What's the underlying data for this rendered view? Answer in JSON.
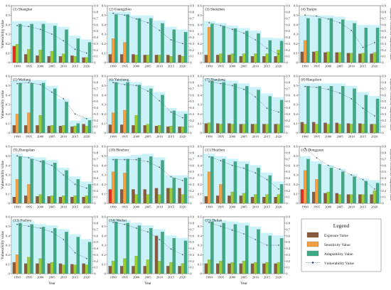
{
  "labels": {
    "ylabel_left": "Vulnerability value",
    "ylabel_right": "Exposure Sensitivity Adaptability value",
    "xlabel": "Year",
    "legend_title": "Legend",
    "legend_items": [
      "Exposure Value",
      "Sensitivity Value",
      "Adaptability Value",
      "Vulnerability Value"
    ]
  },
  "colors": {
    "exposure": "#8B5A3C",
    "sensitivity": "#9ACD32",
    "adaptability": "#3DAA85",
    "vulnerability": "#4A5A78",
    "band": "#B8EEF5",
    "highlight_exposure": "#E03020",
    "highlight_sensitivity": "#F5A040"
  },
  "chart_data": [
    {
      "title": "(1) Shanghai",
      "type": "bar",
      "categories": [
        "1990",
        "1995",
        "2000",
        "2005",
        "2010",
        "2015",
        "2020"
      ],
      "ylim": [
        0,
        0.6
      ],
      "y2lim": [
        0,
        0.9
      ],
      "series": [
        {
          "name": "Exposure Value",
          "values": [
            0.26,
            0.13,
            0.11,
            0.1,
            0.1,
            0.11,
            0.08
          ]
        },
        {
          "name": "Sensitivity Value",
          "values": [
            0.29,
            0.21,
            0.2,
            0.18,
            0.14,
            0.1,
            0.08
          ]
        },
        {
          "name": "Adaptability Value",
          "values": [
            0.61,
            0.61,
            0.61,
            0.58,
            0.52,
            0.38,
            0.32
          ]
        },
        {
          "name": "Vulnerability Value",
          "values": [
            0.39,
            0.38,
            0.35,
            0.3,
            0.23,
            0.14,
            0.1
          ]
        }
      ]
    },
    {
      "title": "(2) Guangzhou",
      "type": "bar",
      "categories": [
        "1990",
        "1995",
        "2000",
        "2005",
        "2010",
        "2015",
        "2020"
      ],
      "ylim": [
        0,
        0.6
      ],
      "y2lim": [
        0,
        0.9
      ],
      "series": [
        {
          "name": "Exposure Value",
          "values": [
            0.13,
            0.13,
            0.13,
            0.12,
            0.12,
            0.12,
            0.12
          ]
        },
        {
          "name": "Sensitivity Value",
          "values": [
            0.38,
            0.32,
            0.12,
            0.12,
            0.12,
            0.1,
            0.1
          ]
        },
        {
          "name": "Adaptability Value",
          "values": [
            0.76,
            0.76,
            0.7,
            0.7,
            0.62,
            0.52,
            0.48
          ]
        },
        {
          "name": "Vulnerability Value",
          "values": [
            0.52,
            0.5,
            0.46,
            0.42,
            0.34,
            0.24,
            0.2
          ]
        }
      ]
    },
    {
      "title": "(3) Shenzhen",
      "type": "bar",
      "categories": [
        "1990",
        "1995",
        "2000",
        "2005",
        "2010",
        "2015",
        "2020"
      ],
      "ylim": [
        0,
        0.6
      ],
      "y2lim": [
        0,
        0.9
      ],
      "series": [
        {
          "name": "Exposure Value",
          "values": [
            0.12,
            0.12,
            0.12,
            0.1,
            0.1,
            0.1,
            0.1
          ]
        },
        {
          "name": "Sensitivity Value",
          "values": [
            0.56,
            0.14,
            0.14,
            0.14,
            0.14,
            0.14,
            0.2
          ]
        },
        {
          "name": "Adaptability Value",
          "values": [
            0.61,
            0.58,
            0.54,
            0.5,
            0.46,
            0.35,
            0.34
          ]
        },
        {
          "name": "Vulnerability Value",
          "values": [
            0.42,
            0.39,
            0.35,
            0.31,
            0.24,
            0.15,
            0.09
          ]
        }
      ]
    },
    {
      "title": "(4) Tianjin",
      "type": "bar",
      "categories": [
        "1990",
        "1995",
        "2000",
        "2005",
        "2010",
        "2015",
        "2020"
      ],
      "ylim": [
        0,
        0.6
      ],
      "y2lim": [
        0,
        0.9
      ],
      "series": [
        {
          "name": "Exposure Value",
          "values": [
            0.17,
            0.17,
            0.16,
            0.16,
            0.15,
            0.14,
            0.14
          ]
        },
        {
          "name": "Sensitivity Value",
          "values": [
            0.35,
            0.18,
            0.17,
            0.16,
            0.15,
            0.15,
            0.16
          ]
        },
        {
          "name": "Adaptability Value",
          "values": [
            0.7,
            0.7,
            0.7,
            0.68,
            0.62,
            0.55,
            0.55
          ]
        },
        {
          "name": "Vulnerability Value",
          "values": [
            0.5,
            0.49,
            0.46,
            0.42,
            0.34,
            0.16,
            0.21
          ]
        }
      ]
    },
    {
      "title": "(5) Weifang",
      "type": "bar",
      "categories": [
        "1990",
        "1995",
        "2000",
        "2005",
        "2010",
        "2015",
        "2020"
      ],
      "ylim": [
        0,
        0.6
      ],
      "y2lim": [
        0,
        0.9
      ],
      "series": [
        {
          "name": "Exposure Value",
          "values": [
            0.12,
            0.12,
            0.12,
            0.11,
            0.11,
            0.1,
            0.14
          ]
        },
        {
          "name": "Sensitivity Value",
          "values": [
            0.3,
            0.32,
            0.28,
            0.12,
            0.12,
            0.11,
            0.11
          ]
        },
        {
          "name": "Adaptability Value",
          "values": [
            0.79,
            0.79,
            0.79,
            0.7,
            0.49,
            0.15,
            0.2
          ]
        },
        {
          "name": "Vulnerability Value",
          "values": [
            0.52,
            0.53,
            0.51,
            0.43,
            0.36,
            0.2,
            0.15
          ]
        }
      ]
    },
    {
      "title": "(6) Yancheng",
      "type": "bar",
      "categories": [
        "1990",
        "1995",
        "2000",
        "2005",
        "2010",
        "2015",
        "2020"
      ],
      "ylim": [
        0,
        0.6
      ],
      "y2lim": [
        0,
        0.9
      ],
      "series": [
        {
          "name": "Exposure Value",
          "values": [
            0.13,
            0.13,
            0.12,
            0.12,
            0.11,
            0.1,
            0.1
          ]
        },
        {
          "name": "Sensitivity Value",
          "values": [
            0.32,
            0.36,
            0.28,
            0.14,
            0.12,
            0.11,
            0.1
          ]
        },
        {
          "name": "Adaptability Value",
          "values": [
            0.8,
            0.8,
            0.76,
            0.7,
            0.6,
            0.35,
            0.3
          ]
        },
        {
          "name": "Vulnerability Value",
          "values": [
            0.53,
            0.51,
            0.5,
            0.44,
            0.34,
            0.22,
            0.16
          ]
        }
      ]
    },
    {
      "title": "(7) Zhanjiang",
      "type": "bar",
      "categories": [
        "1990",
        "1995",
        "2000",
        "2005",
        "2010",
        "2015",
        "2020"
      ],
      "ylim": [
        0,
        0.6
      ],
      "y2lim": [
        0,
        0.9
      ],
      "series": [
        {
          "name": "Exposure Value",
          "values": [
            0.15,
            0.15,
            0.15,
            0.14,
            0.14,
            0.14,
            0.14
          ]
        },
        {
          "name": "Sensitivity Value",
          "values": [
            0.16,
            0.14,
            0.14,
            0.14,
            0.14,
            0.14,
            0.14
          ]
        },
        {
          "name": "Adaptability Value",
          "values": [
            0.82,
            0.8,
            0.78,
            0.74,
            0.68,
            0.58,
            0.52
          ]
        },
        {
          "name": "Vulnerability Value",
          "values": [
            0.54,
            0.52,
            0.5,
            0.46,
            0.38,
            0.26,
            0.22
          ]
        }
      ]
    },
    {
      "title": "(8) Hangzhou",
      "type": "bar",
      "categories": [
        "1990",
        "1995",
        "2000",
        "2005",
        "2010",
        "2015",
        "2020"
      ],
      "ylim": [
        0,
        0.6
      ],
      "y2lim": [
        0,
        0.9
      ],
      "series": [
        {
          "name": "Exposure Value",
          "values": [
            0.17,
            0.17,
            0.16,
            0.16,
            0.15,
            0.15,
            0.14
          ]
        },
        {
          "name": "Sensitivity Value",
          "values": [
            0.14,
            0.14,
            0.14,
            0.14,
            0.14,
            0.14,
            0.14
          ]
        },
        {
          "name": "Adaptability Value",
          "values": [
            0.74,
            0.74,
            0.74,
            0.74,
            0.7,
            0.6,
            0.54
          ]
        },
        {
          "name": "Vulnerability Value",
          "values": [
            0.49,
            0.48,
            0.46,
            0.42,
            0.36,
            0.26,
            0.18
          ]
        }
      ]
    },
    {
      "title": "(9) Zhongshan",
      "type": "bar",
      "categories": [
        "1990",
        "1995",
        "2000",
        "2005",
        "2010",
        "2015",
        "2020"
      ],
      "ylim": [
        0,
        0.6
      ],
      "y2lim": [
        0,
        0.9
      ],
      "series": [
        {
          "name": "Exposure Value",
          "values": [
            0.1,
            0.12,
            0.11,
            0.11,
            0.1,
            0.1,
            0.1
          ]
        },
        {
          "name": "Sensitivity Value",
          "values": [
            0.38,
            0.3,
            0.14,
            0.12,
            0.12,
            0.12,
            0.12
          ]
        },
        {
          "name": "Adaptability Value",
          "values": [
            0.74,
            0.7,
            0.68,
            0.64,
            0.52,
            0.38,
            0.3
          ]
        },
        {
          "name": "Vulnerability Value",
          "values": [
            0.5,
            0.48,
            0.44,
            0.4,
            0.3,
            0.2,
            0.16
          ]
        }
      ]
    },
    {
      "title": "(10) Binzhou",
      "type": "bar",
      "categories": [
        "1990",
        "1995",
        "2000",
        "2005",
        "2010",
        "2015",
        "2020"
      ],
      "ylim": [
        0,
        0.6
      ],
      "y2lim": [
        0,
        0.9
      ],
      "series": [
        {
          "name": "Exposure Value",
          "values": [
            0.22,
            0.22,
            0.22,
            0.22,
            0.24,
            0.24,
            0.24
          ]
        },
        {
          "name": "Sensitivity Value",
          "values": [
            0.5,
            0.48,
            0.14,
            0.14,
            0.14,
            0.24,
            0.14
          ]
        },
        {
          "name": "Adaptability Value",
          "values": [
            0.7,
            0.7,
            0.72,
            0.74,
            0.68,
            0.4,
            0.4
          ]
        },
        {
          "name": "Vulnerability Value",
          "values": [
            0.46,
            0.46,
            0.46,
            0.44,
            0.38,
            0.28,
            0.24
          ]
        }
      ]
    },
    {
      "title": "(11) Huizhou",
      "type": "bar",
      "categories": [
        "1990",
        "1995",
        "2000",
        "2005",
        "2010",
        "2015",
        "2020"
      ],
      "ylim": [
        0,
        0.6
      ],
      "y2lim": [
        0,
        0.9
      ],
      "series": [
        {
          "name": "Exposure Value",
          "values": [
            0.11,
            0.12,
            0.12,
            0.12,
            0.1,
            0.1,
            0.1
          ]
        },
        {
          "name": "Sensitivity Value",
          "values": [
            0.5,
            0.3,
            0.18,
            0.16,
            0.14,
            0.14,
            0.14
          ]
        },
        {
          "name": "Adaptability Value",
          "values": [
            0.74,
            0.7,
            0.66,
            0.62,
            0.56,
            0.44,
            0.3
          ]
        },
        {
          "name": "Vulnerability Value",
          "values": [
            0.49,
            0.45,
            0.4,
            0.37,
            0.32,
            0.25,
            0.15
          ]
        }
      ]
    },
    {
      "title": "(12) Dongguan",
      "type": "bar",
      "categories": [
        "1990",
        "1995",
        "2000",
        "2005",
        "2010",
        "2015",
        "2020"
      ],
      "ylim": [
        0,
        0.6
      ],
      "y2lim": [
        0,
        0.9
      ],
      "series": [
        {
          "name": "Exposure Value",
          "values": [
            0.22,
            0.18,
            0.16,
            0.16,
            0.14,
            0.14,
            0.14
          ]
        },
        {
          "name": "Sensitivity Value",
          "values": [
            0.52,
            0.38,
            0.18,
            0.14,
            0.14,
            0.14,
            0.2
          ]
        },
        {
          "name": "Adaptability Value",
          "values": [
            0.7,
            0.62,
            0.56,
            0.5,
            0.42,
            0.35,
            0.32
          ]
        },
        {
          "name": "Vulnerability Value",
          "values": [
            0.58,
            0.48,
            0.4,
            0.36,
            0.3,
            0.25,
            0.15
          ]
        }
      ]
    },
    {
      "title": "(13) Fuzhou",
      "type": "bar",
      "categories": [
        "1990",
        "1995",
        "2000",
        "2005",
        "2010",
        "2015",
        "2020"
      ],
      "ylim": [
        0,
        0.6
      ],
      "y2lim": [
        0,
        0.9
      ],
      "series": [
        {
          "name": "Exposure Value",
          "values": [
            0.18,
            0.16,
            0.16,
            0.16,
            0.16,
            0.15,
            0.16
          ]
        },
        {
          "name": "Sensitivity Value",
          "values": [
            0.3,
            0.26,
            0.24,
            0.18,
            0.14,
            0.14,
            0.14
          ]
        },
        {
          "name": "Adaptability Value",
          "values": [
            0.8,
            0.78,
            0.74,
            0.72,
            0.66,
            0.58,
            0.5
          ]
        },
        {
          "name": "Vulnerability Value",
          "values": [
            0.52,
            0.5,
            0.48,
            0.44,
            0.36,
            0.22,
            0.16
          ]
        }
      ]
    },
    {
      "title": "(14) Weihai",
      "type": "bar",
      "categories": [
        "1990",
        "1995",
        "2000",
        "2005",
        "2010",
        "2015",
        "2020"
      ],
      "ylim": [
        0,
        0.6
      ],
      "y2lim": [
        0,
        0.9
      ],
      "series": [
        {
          "name": "Exposure Value",
          "values": [
            0.12,
            0.12,
            0.12,
            0.12,
            0.6,
            0.12,
            0.12
          ]
        },
        {
          "name": "Sensitivity Value",
          "values": [
            0.2,
            0.24,
            0.28,
            0.22,
            0.2,
            0.18,
            0.16
          ]
        },
        {
          "name": "Adaptability Value",
          "values": [
            0.82,
            0.8,
            0.76,
            0.72,
            0.66,
            0.56,
            0.52
          ]
        },
        {
          "name": "Vulnerability Value",
          "values": [
            0.54,
            0.52,
            0.48,
            0.44,
            0.36,
            0.26,
            0.2
          ]
        }
      ]
    },
    {
      "title": "(15) Dalian",
      "type": "bar",
      "categories": [
        "1990",
        "1995",
        "2000",
        "2005",
        "2010",
        "2015",
        "2020"
      ],
      "ylim": [
        0,
        0.6
      ],
      "y2lim": [
        0,
        0.9
      ],
      "series": [
        {
          "name": "Exposure Value",
          "values": [
            0.16,
            0.16,
            0.16,
            0.16,
            0.16,
            0.16,
            0.16
          ]
        },
        {
          "name": "Sensitivity Value",
          "values": [
            0.22,
            0.2,
            0.18,
            0.2,
            0.18,
            0.18,
            0.18
          ]
        },
        {
          "name": "Adaptability Value",
          "values": [
            0.82,
            0.8,
            0.78,
            0.76,
            0.7,
            0.6,
            0.56
          ]
        },
        {
          "name": "Vulnerability Value",
          "values": [
            0.54,
            0.5,
            0.46,
            0.42,
            0.36,
            0.3,
            0.3
          ]
        }
      ]
    }
  ]
}
